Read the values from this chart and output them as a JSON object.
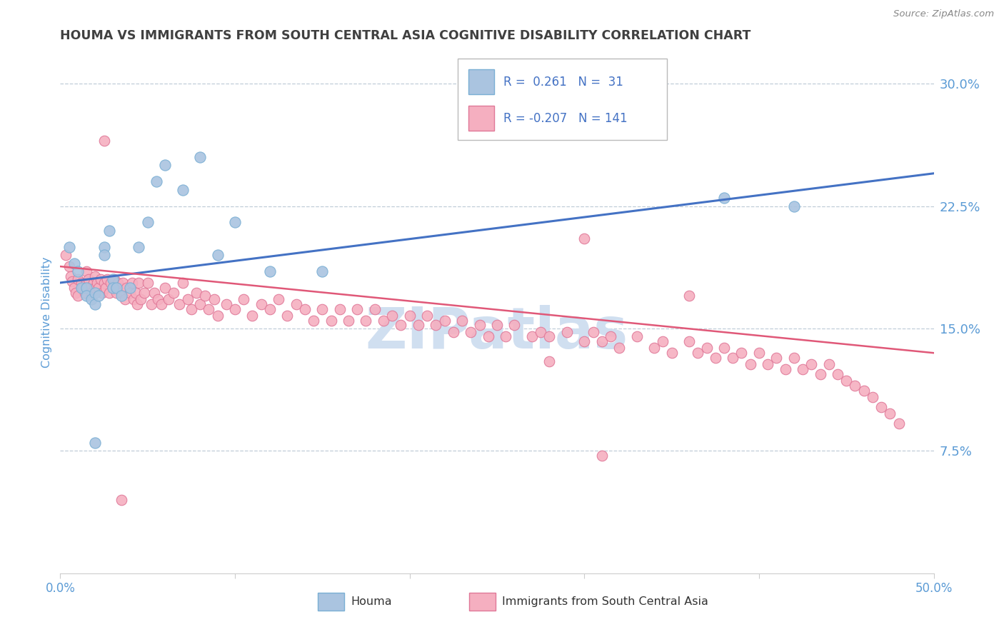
{
  "title": "HOUMA VS IMMIGRANTS FROM SOUTH CENTRAL ASIA COGNITIVE DISABILITY CORRELATION CHART",
  "source": "Source: ZipAtlas.com",
  "ylabel": "Cognitive Disability",
  "xlim": [
    0.0,
    0.5
  ],
  "ylim": [
    0.0,
    0.32
  ],
  "xticks": [
    0.0,
    0.1,
    0.2,
    0.3,
    0.4,
    0.5
  ],
  "xtick_labels": [
    "0.0%",
    "",
    "",
    "",
    "",
    "50.0%"
  ],
  "yticks": [
    0.075,
    0.15,
    0.225,
    0.3
  ],
  "ytick_labels": [
    "7.5%",
    "15.0%",
    "22.5%",
    "30.0%"
  ],
  "houma_R": 0.261,
  "houma_N": 31,
  "immigrants_R": -0.207,
  "immigrants_N": 141,
  "houma_color": "#aac4e0",
  "houma_edge_color": "#7aafd4",
  "immigrants_color": "#f5afc0",
  "immigrants_edge_color": "#e07898",
  "blue_line_color": "#4472c4",
  "pink_line_color": "#e05878",
  "title_color": "#404040",
  "axis_color": "#5b9bd5",
  "watermark_color": "#d0dff0",
  "background_color": "#ffffff",
  "grid_color": "#c0cdd8",
  "legend_text_color": "#4472c4",
  "houma_scatter_x": [
    0.005,
    0.008,
    0.01,
    0.012,
    0.015,
    0.015,
    0.018,
    0.02,
    0.02,
    0.022,
    0.025,
    0.025,
    0.028,
    0.03,
    0.03,
    0.032,
    0.035,
    0.04,
    0.045,
    0.05,
    0.055,
    0.06,
    0.07,
    0.08,
    0.09,
    0.1,
    0.12,
    0.15,
    0.02,
    0.38,
    0.42
  ],
  "houma_scatter_y": [
    0.2,
    0.19,
    0.185,
    0.175,
    0.175,
    0.17,
    0.168,
    0.165,
    0.172,
    0.17,
    0.2,
    0.195,
    0.21,
    0.18,
    0.175,
    0.175,
    0.17,
    0.175,
    0.2,
    0.215,
    0.24,
    0.25,
    0.235,
    0.255,
    0.195,
    0.215,
    0.185,
    0.185,
    0.08,
    0.23,
    0.225
  ],
  "immigrants_scatter_x": [
    0.003,
    0.005,
    0.006,
    0.007,
    0.008,
    0.009,
    0.01,
    0.01,
    0.012,
    0.013,
    0.014,
    0.015,
    0.015,
    0.016,
    0.017,
    0.018,
    0.019,
    0.02,
    0.02,
    0.021,
    0.022,
    0.023,
    0.024,
    0.025,
    0.026,
    0.027,
    0.028,
    0.029,
    0.03,
    0.031,
    0.032,
    0.033,
    0.034,
    0.035,
    0.036,
    0.037,
    0.038,
    0.04,
    0.041,
    0.042,
    0.043,
    0.044,
    0.045,
    0.046,
    0.048,
    0.05,
    0.052,
    0.054,
    0.056,
    0.058,
    0.06,
    0.062,
    0.065,
    0.068,
    0.07,
    0.073,
    0.075,
    0.078,
    0.08,
    0.083,
    0.085,
    0.088,
    0.09,
    0.095,
    0.1,
    0.105,
    0.11,
    0.115,
    0.12,
    0.125,
    0.13,
    0.135,
    0.14,
    0.145,
    0.15,
    0.155,
    0.16,
    0.165,
    0.17,
    0.175,
    0.18,
    0.185,
    0.19,
    0.195,
    0.2,
    0.205,
    0.21,
    0.215,
    0.22,
    0.225,
    0.23,
    0.235,
    0.24,
    0.245,
    0.25,
    0.255,
    0.26,
    0.27,
    0.275,
    0.28,
    0.29,
    0.3,
    0.305,
    0.31,
    0.315,
    0.32,
    0.33,
    0.34,
    0.345,
    0.35,
    0.36,
    0.365,
    0.37,
    0.375,
    0.38,
    0.385,
    0.39,
    0.395,
    0.4,
    0.405,
    0.41,
    0.415,
    0.42,
    0.425,
    0.43,
    0.435,
    0.44,
    0.445,
    0.45,
    0.455,
    0.46,
    0.465,
    0.47,
    0.475,
    0.48,
    0.36,
    0.28,
    0.3,
    0.31,
    0.025,
    0.035
  ],
  "immigrants_scatter_y": [
    0.195,
    0.188,
    0.182,
    0.179,
    0.175,
    0.172,
    0.17,
    0.18,
    0.178,
    0.175,
    0.172,
    0.185,
    0.178,
    0.18,
    0.175,
    0.172,
    0.178,
    0.182,
    0.175,
    0.178,
    0.175,
    0.18,
    0.172,
    0.178,
    0.175,
    0.18,
    0.172,
    0.178,
    0.175,
    0.18,
    0.172,
    0.178,
    0.175,
    0.172,
    0.178,
    0.168,
    0.175,
    0.172,
    0.178,
    0.168,
    0.172,
    0.165,
    0.178,
    0.168,
    0.172,
    0.178,
    0.165,
    0.172,
    0.168,
    0.165,
    0.175,
    0.168,
    0.172,
    0.165,
    0.178,
    0.168,
    0.162,
    0.172,
    0.165,
    0.17,
    0.162,
    0.168,
    0.158,
    0.165,
    0.162,
    0.168,
    0.158,
    0.165,
    0.162,
    0.168,
    0.158,
    0.165,
    0.162,
    0.155,
    0.162,
    0.155,
    0.162,
    0.155,
    0.162,
    0.155,
    0.162,
    0.155,
    0.158,
    0.152,
    0.158,
    0.152,
    0.158,
    0.152,
    0.155,
    0.148,
    0.155,
    0.148,
    0.152,
    0.145,
    0.152,
    0.145,
    0.152,
    0.145,
    0.148,
    0.145,
    0.148,
    0.142,
    0.148,
    0.142,
    0.145,
    0.138,
    0.145,
    0.138,
    0.142,
    0.135,
    0.142,
    0.135,
    0.138,
    0.132,
    0.138,
    0.132,
    0.135,
    0.128,
    0.135,
    0.128,
    0.132,
    0.125,
    0.132,
    0.125,
    0.128,
    0.122,
    0.128,
    0.122,
    0.118,
    0.115,
    0.112,
    0.108,
    0.102,
    0.098,
    0.092,
    0.17,
    0.13,
    0.205,
    0.072,
    0.265,
    0.045
  ]
}
